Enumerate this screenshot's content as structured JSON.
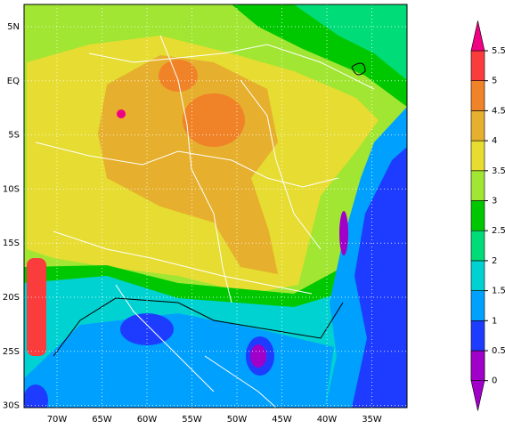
{
  "map": {
    "lat_labels": [
      "5N",
      "EQ",
      "5S",
      "10S",
      "15S",
      "20S",
      "25S",
      "30S"
    ],
    "lon_labels": [
      "70W",
      "65W",
      "60W",
      "55W",
      "50W",
      "45W",
      "40W",
      "35W"
    ]
  },
  "colorbar": {
    "ticks": [
      0,
      0.5,
      1,
      1.5,
      2,
      2.5,
      3,
      3.5,
      4,
      4.5,
      5,
      5.5
    ],
    "colors": [
      "#a000c8",
      "#1e3cff",
      "#00a0ff",
      "#00d2d2",
      "#00dc78",
      "#00c800",
      "#a0e632",
      "#e6dc32",
      "#e6af2d",
      "#f08228",
      "#fa3c3c",
      "#f00082"
    ]
  }
}
